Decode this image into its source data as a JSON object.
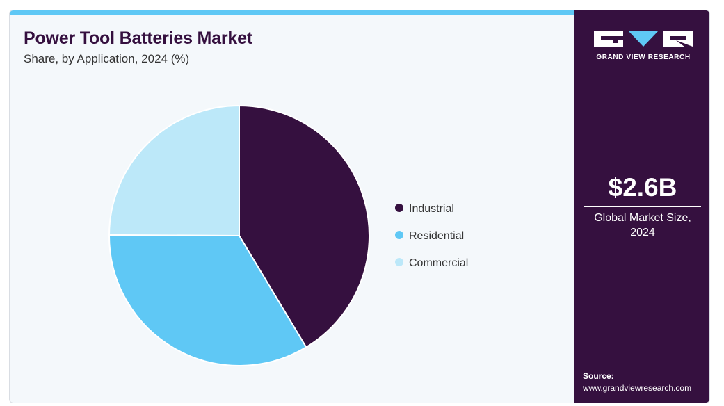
{
  "header": {
    "title": "Power Tool Batteries Market",
    "subtitle": "Share, by Application, 2024 (%)"
  },
  "sidebar": {
    "logo_text": "GRAND VIEW RESEARCH",
    "market_size_value": "$2.6B",
    "market_size_label": "Global Market Size, 2024",
    "source_label": "Source:",
    "source_url": "www.grandviewresearch.com"
  },
  "colors": {
    "brand_dark": "#35103f",
    "accent": "#5fc8f5",
    "light_blue": "#bce8f9",
    "background": "#f4f8fb"
  },
  "chart_data": {
    "type": "pie",
    "title": "Power Tool Batteries Market",
    "subtitle": "Share, by Application, 2024 (%)",
    "categories": [
      "Industrial",
      "Residential",
      "Commercial"
    ],
    "values": [
      41.4,
      33.7,
      24.9
    ],
    "colors": [
      "#35103f",
      "#5fc8f5",
      "#bce8f9"
    ],
    "start_angle_deg": 0,
    "direction": "clockwise",
    "legend_placement": "right"
  }
}
